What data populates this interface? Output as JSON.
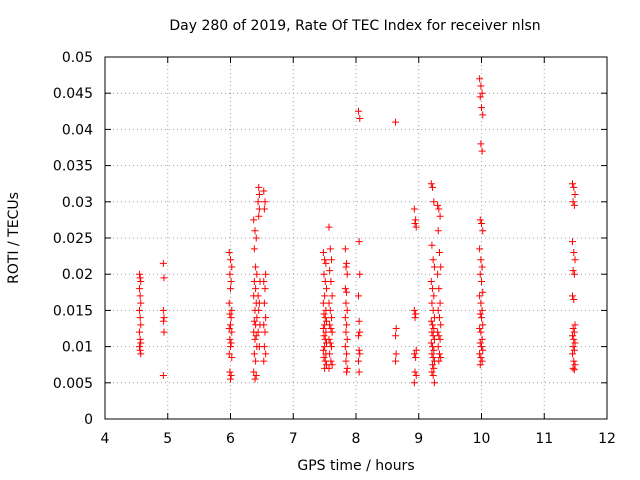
{
  "chart_data": {
    "type": "scatter",
    "title": "Day 280 of 2019, Rate Of TEC Index for receiver nlsn",
    "xlabel": "GPS time / hours",
    "ylabel": "ROTI / TECUs",
    "xlim": [
      4,
      12
    ],
    "ylim": [
      0,
      0.05
    ],
    "xticks": [
      4,
      5,
      6,
      7,
      8,
      9,
      10,
      11,
      12
    ],
    "xtick_labels": [
      "4",
      "5",
      "6",
      "7",
      "8",
      "9",
      "10",
      "11",
      "12"
    ],
    "yticks": [
      0,
      0.005,
      0.01,
      0.015,
      0.02,
      0.025,
      0.03,
      0.035,
      0.04,
      0.045,
      0.05
    ],
    "ytick_labels": [
      "0",
      "0.005",
      "0.01",
      "0.015",
      "0.02",
      "0.025",
      "0.03",
      "0.035",
      "0.04",
      "0.045",
      "0.05"
    ],
    "grid": true,
    "marker": "+",
    "color": "#ff0000",
    "series": [
      {
        "name": "ROTI",
        "points": [
          [
            4.55,
            0.02
          ],
          [
            4.56,
            0.0195
          ],
          [
            4.57,
            0.019
          ],
          [
            4.55,
            0.018
          ],
          [
            4.56,
            0.017
          ],
          [
            4.57,
            0.016
          ],
          [
            4.55,
            0.015
          ],
          [
            4.56,
            0.014
          ],
          [
            4.57,
            0.013
          ],
          [
            4.55,
            0.012
          ],
          [
            4.56,
            0.011
          ],
          [
            4.57,
            0.0105
          ],
          [
            4.55,
            0.01
          ],
          [
            4.56,
            0.0095
          ],
          [
            4.57,
            0.009
          ],
          [
            4.93,
            0.0215
          ],
          [
            4.94,
            0.0195
          ],
          [
            4.93,
            0.015
          ],
          [
            4.94,
            0.014
          ],
          [
            4.93,
            0.0135
          ],
          [
            4.94,
            0.012
          ],
          [
            4.93,
            0.006
          ],
          [
            5.98,
            0.023
          ],
          [
            6.0,
            0.022
          ],
          [
            6.02,
            0.021
          ],
          [
            5.99,
            0.02
          ],
          [
            6.01,
            0.019
          ],
          [
            6.0,
            0.018
          ],
          [
            5.98,
            0.016
          ],
          [
            6.02,
            0.015
          ],
          [
            5.99,
            0.0145
          ],
          [
            6.01,
            0.014
          ],
          [
            6.0,
            0.013
          ],
          [
            5.98,
            0.0125
          ],
          [
            6.02,
            0.012
          ],
          [
            5.99,
            0.011
          ],
          [
            6.01,
            0.0105
          ],
          [
            6.0,
            0.01
          ],
          [
            5.98,
            0.009
          ],
          [
            6.02,
            0.0085
          ],
          [
            5.99,
            0.0065
          ],
          [
            6.01,
            0.006
          ],
          [
            6.0,
            0.0055
          ],
          [
            6.37,
            0.0275
          ],
          [
            6.39,
            0.026
          ],
          [
            6.41,
            0.025
          ],
          [
            6.38,
            0.0235
          ],
          [
            6.4,
            0.021
          ],
          [
            6.42,
            0.02
          ],
          [
            6.38,
            0.019
          ],
          [
            6.4,
            0.018
          ],
          [
            6.37,
            0.017
          ],
          [
            6.41,
            0.016
          ],
          [
            6.39,
            0.015
          ],
          [
            6.42,
            0.014
          ],
          [
            6.38,
            0.0135
          ],
          [
            6.4,
            0.013
          ],
          [
            6.37,
            0.012
          ],
          [
            6.41,
            0.0115
          ],
          [
            6.39,
            0.011
          ],
          [
            6.42,
            0.01
          ],
          [
            6.38,
            0.009
          ],
          [
            6.4,
            0.008
          ],
          [
            6.37,
            0.0065
          ],
          [
            6.41,
            0.006
          ],
          [
            6.39,
            0.0055
          ],
          [
            6.45,
            0.032
          ],
          [
            6.46,
            0.031
          ],
          [
            6.44,
            0.03
          ],
          [
            6.46,
            0.029
          ],
          [
            6.45,
            0.028
          ],
          [
            6.47,
            0.019
          ],
          [
            6.44,
            0.017
          ],
          [
            6.46,
            0.016
          ],
          [
            6.45,
            0.015
          ],
          [
            6.47,
            0.013
          ],
          [
            6.44,
            0.012
          ],
          [
            6.46,
            0.01
          ],
          [
            6.53,
            0.0315
          ],
          [
            6.55,
            0.03
          ],
          [
            6.54,
            0.029
          ],
          [
            6.56,
            0.02
          ],
          [
            6.53,
            0.019
          ],
          [
            6.55,
            0.018
          ],
          [
            6.54,
            0.016
          ],
          [
            6.56,
            0.014
          ],
          [
            6.53,
            0.013
          ],
          [
            6.55,
            0.012
          ],
          [
            6.54,
            0.01
          ],
          [
            6.56,
            0.009
          ],
          [
            6.53,
            0.008
          ],
          [
            7.48,
            0.023
          ],
          [
            7.5,
            0.022
          ],
          [
            7.52,
            0.0215
          ],
          [
            7.49,
            0.02
          ],
          [
            7.51,
            0.019
          ],
          [
            7.53,
            0.018
          ],
          [
            7.5,
            0.017
          ],
          [
            7.48,
            0.016
          ],
          [
            7.52,
            0.015
          ],
          [
            7.49,
            0.0145
          ],
          [
            7.51,
            0.014
          ],
          [
            7.53,
            0.0135
          ],
          [
            7.5,
            0.013
          ],
          [
            7.48,
            0.0125
          ],
          [
            7.52,
            0.012
          ],
          [
            7.49,
            0.0115
          ],
          [
            7.51,
            0.011
          ],
          [
            7.53,
            0.0105
          ],
          [
            7.5,
            0.01
          ],
          [
            7.48,
            0.0095
          ],
          [
            7.52,
            0.009
          ],
          [
            7.49,
            0.0085
          ],
          [
            7.51,
            0.008
          ],
          [
            7.53,
            0.0075
          ],
          [
            7.5,
            0.007
          ],
          [
            7.57,
            0.0265
          ],
          [
            7.59,
            0.0235
          ],
          [
            7.61,
            0.022
          ],
          [
            7.58,
            0.0205
          ],
          [
            7.6,
            0.019
          ],
          [
            7.62,
            0.017
          ],
          [
            7.57,
            0.016
          ],
          [
            7.59,
            0.015
          ],
          [
            7.61,
            0.014
          ],
          [
            7.58,
            0.013
          ],
          [
            7.6,
            0.0125
          ],
          [
            7.62,
            0.012
          ],
          [
            7.57,
            0.011
          ],
          [
            7.59,
            0.0105
          ],
          [
            7.61,
            0.01
          ],
          [
            7.58,
            0.009
          ],
          [
            7.6,
            0.008
          ],
          [
            7.62,
            0.0075
          ],
          [
            7.57,
            0.007
          ],
          [
            7.83,
            0.0235
          ],
          [
            7.85,
            0.0215
          ],
          [
            7.84,
            0.021
          ],
          [
            7.86,
            0.02
          ],
          [
            7.83,
            0.018
          ],
          [
            7.85,
            0.0175
          ],
          [
            7.84,
            0.016
          ],
          [
            7.86,
            0.015
          ],
          [
            7.83,
            0.014
          ],
          [
            7.85,
            0.013
          ],
          [
            7.84,
            0.012
          ],
          [
            7.86,
            0.011
          ],
          [
            7.83,
            0.01
          ],
          [
            7.85,
            0.009
          ],
          [
            7.84,
            0.008
          ],
          [
            7.86,
            0.007
          ],
          [
            7.85,
            0.0065
          ],
          [
            8.04,
            0.0425
          ],
          [
            8.06,
            0.0415
          ],
          [
            8.05,
            0.0245
          ],
          [
            8.06,
            0.02
          ],
          [
            8.04,
            0.017
          ],
          [
            8.05,
            0.0135
          ],
          [
            8.06,
            0.012
          ],
          [
            8.04,
            0.0115
          ],
          [
            8.05,
            0.0095
          ],
          [
            8.06,
            0.009
          ],
          [
            8.04,
            0.008
          ],
          [
            8.05,
            0.0065
          ],
          [
            8.63,
            0.041
          ],
          [
            8.64,
            0.0125
          ],
          [
            8.63,
            0.0115
          ],
          [
            8.64,
            0.009
          ],
          [
            8.63,
            0.008
          ],
          [
            8.93,
            0.029
          ],
          [
            8.95,
            0.0275
          ],
          [
            8.94,
            0.027
          ],
          [
            8.96,
            0.0265
          ],
          [
            8.93,
            0.015
          ],
          [
            8.95,
            0.0145
          ],
          [
            8.94,
            0.014
          ],
          [
            8.96,
            0.0095
          ],
          [
            8.93,
            0.009
          ],
          [
            8.95,
            0.0085
          ],
          [
            8.94,
            0.0065
          ],
          [
            8.96,
            0.006
          ],
          [
            8.93,
            0.005
          ],
          [
            9.2,
            0.0325
          ],
          [
            9.22,
            0.032
          ],
          [
            9.24,
            0.03
          ],
          [
            9.21,
            0.024
          ],
          [
            9.23,
            0.022
          ],
          [
            9.25,
            0.021
          ],
          [
            9.2,
            0.019
          ],
          [
            9.22,
            0.018
          ],
          [
            9.24,
            0.017
          ],
          [
            9.21,
            0.016
          ],
          [
            9.23,
            0.015
          ],
          [
            9.25,
            0.014
          ],
          [
            9.2,
            0.0135
          ],
          [
            9.22,
            0.013
          ],
          [
            9.24,
            0.0125
          ],
          [
            9.21,
            0.012
          ],
          [
            9.23,
            0.0115
          ],
          [
            9.25,
            0.011
          ],
          [
            9.2,
            0.0105
          ],
          [
            9.22,
            0.01
          ],
          [
            9.24,
            0.0095
          ],
          [
            9.21,
            0.009
          ],
          [
            9.23,
            0.0085
          ],
          [
            9.25,
            0.008
          ],
          [
            9.22,
            0.0075
          ],
          [
            9.24,
            0.007
          ],
          [
            9.21,
            0.0065
          ],
          [
            9.23,
            0.006
          ],
          [
            9.25,
            0.005
          ],
          [
            9.3,
            0.0295
          ],
          [
            9.32,
            0.029
          ],
          [
            9.34,
            0.028
          ],
          [
            9.31,
            0.026
          ],
          [
            9.33,
            0.023
          ],
          [
            9.35,
            0.021
          ],
          [
            9.3,
            0.02
          ],
          [
            9.32,
            0.018
          ],
          [
            9.34,
            0.016
          ],
          [
            9.31,
            0.015
          ],
          [
            9.33,
            0.014
          ],
          [
            9.35,
            0.013
          ],
          [
            9.3,
            0.012
          ],
          [
            9.32,
            0.0115
          ],
          [
            9.34,
            0.011
          ],
          [
            9.31,
            0.01
          ],
          [
            9.33,
            0.009
          ],
          [
            9.35,
            0.0085
          ],
          [
            9.32,
            0.008
          ],
          [
            9.97,
            0.047
          ],
          [
            9.99,
            0.046
          ],
          [
            10.01,
            0.045
          ],
          [
            9.98,
            0.0445
          ],
          [
            10.0,
            0.043
          ],
          [
            10.02,
            0.042
          ],
          [
            9.99,
            0.038
          ],
          [
            10.01,
            0.037
          ],
          [
            9.98,
            0.0275
          ],
          [
            10.0,
            0.027
          ],
          [
            10.02,
            0.026
          ],
          [
            9.97,
            0.0235
          ],
          [
            9.99,
            0.022
          ],
          [
            10.01,
            0.021
          ],
          [
            9.98,
            0.02
          ],
          [
            10.0,
            0.019
          ],
          [
            10.02,
            0.0175
          ],
          [
            9.97,
            0.017
          ],
          [
            9.99,
            0.016
          ],
          [
            10.01,
            0.015
          ],
          [
            9.98,
            0.0145
          ],
          [
            10.0,
            0.014
          ],
          [
            10.02,
            0.013
          ],
          [
            9.97,
            0.0125
          ],
          [
            9.99,
            0.012
          ],
          [
            10.01,
            0.011
          ],
          [
            9.98,
            0.0105
          ],
          [
            10.0,
            0.01
          ],
          [
            10.02,
            0.0095
          ],
          [
            9.97,
            0.009
          ],
          [
            9.99,
            0.0085
          ],
          [
            10.01,
            0.008
          ],
          [
            9.98,
            0.0075
          ],
          [
            11.45,
            0.0325
          ],
          [
            11.47,
            0.032
          ],
          [
            11.49,
            0.031
          ],
          [
            11.46,
            0.03
          ],
          [
            11.48,
            0.0295
          ],
          [
            11.45,
            0.0245
          ],
          [
            11.47,
            0.023
          ],
          [
            11.49,
            0.022
          ],
          [
            11.46,
            0.0205
          ],
          [
            11.48,
            0.02
          ],
          [
            11.45,
            0.017
          ],
          [
            11.47,
            0.0165
          ],
          [
            11.49,
            0.013
          ],
          [
            11.46,
            0.0125
          ],
          [
            11.48,
            0.012
          ],
          [
            11.45,
            0.0115
          ],
          [
            11.47,
            0.011
          ],
          [
            11.49,
            0.0105
          ],
          [
            11.46,
            0.01
          ],
          [
            11.48,
            0.0095
          ],
          [
            11.45,
            0.009
          ],
          [
            11.47,
            0.008
          ],
          [
            11.49,
            0.0075
          ],
          [
            11.46,
            0.007
          ],
          [
            11.48,
            0.0068
          ]
        ]
      }
    ]
  }
}
